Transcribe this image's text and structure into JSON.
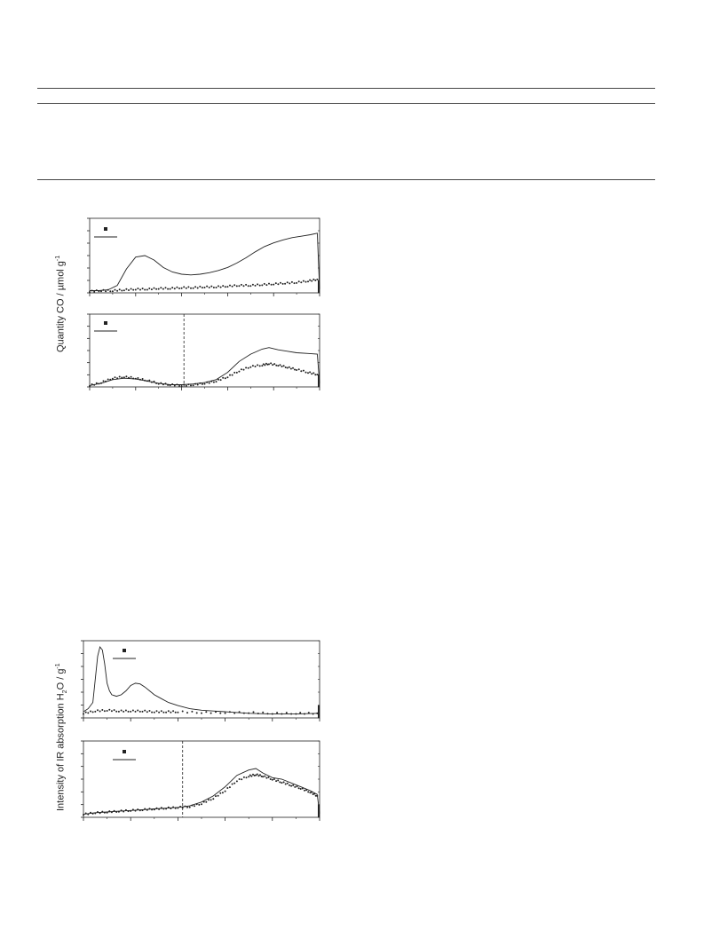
{
  "figure_top": {
    "ylabel": "Quantity CO / µmol g",
    "ylabel_sup": "-1"
  },
  "figure_bottom": {
    "ylabel": "Intensity of IR absorption H",
    "ylabel_sub": "2",
    "ylabel_rest": "O / g",
    "ylabel_sup": "-1"
  },
  "chart_data": [
    {
      "type": "line",
      "panel": "top-upper",
      "xlim": [
        0,
        100
      ],
      "ylim": [
        0,
        100
      ],
      "grid": false,
      "legend": "top-left",
      "series": [
        {
          "style": "line",
          "x": [
            0,
            4,
            8,
            12,
            16,
            20,
            24,
            28,
            32,
            36,
            40,
            44,
            48,
            52,
            56,
            60,
            64,
            68,
            72,
            76,
            80,
            84,
            88,
            92,
            96,
            99,
            100
          ],
          "values": [
            3,
            3,
            4,
            10,
            32,
            48,
            50,
            44,
            34,
            28,
            25,
            24,
            25,
            27,
            30,
            34,
            40,
            47,
            55,
            62,
            67,
            71,
            74,
            76,
            78,
            80,
            5
          ]
        },
        {
          "style": "dots",
          "x": [
            0,
            5,
            10,
            15,
            20,
            25,
            30,
            35,
            40,
            45,
            50,
            55,
            60,
            65,
            70,
            75,
            80,
            85,
            90,
            95,
            99
          ],
          "values": [
            2,
            3,
            3,
            4,
            5,
            5,
            6,
            6,
            7,
            7,
            8,
            8,
            9,
            10,
            10,
            11,
            12,
            13,
            14,
            16,
            18
          ]
        }
      ]
    },
    {
      "type": "line",
      "panel": "top-lower",
      "xlim": [
        0,
        100
      ],
      "ylim": [
        0,
        100
      ],
      "grid": false,
      "legend": "top-left",
      "marker_line_x": 41,
      "series": [
        {
          "style": "line",
          "x": [
            0,
            5,
            10,
            15,
            20,
            25,
            30,
            35,
            40,
            45,
            50,
            55,
            60,
            65,
            70,
            75,
            78,
            82,
            86,
            90,
            95,
            99,
            100
          ],
          "values": [
            2,
            5,
            10,
            12,
            11,
            8,
            5,
            3,
            3,
            4,
            6,
            10,
            20,
            35,
            45,
            52,
            54,
            51,
            49,
            47,
            46,
            45,
            5
          ]
        },
        {
          "style": "dots",
          "x": [
            0,
            5,
            10,
            15,
            20,
            25,
            30,
            35,
            40,
            45,
            50,
            55,
            60,
            65,
            70,
            75,
            78,
            82,
            86,
            90,
            95,
            99
          ],
          "values": [
            2,
            6,
            12,
            14,
            12,
            9,
            5,
            3,
            2,
            3,
            5,
            8,
            14,
            22,
            28,
            30,
            32,
            30,
            27,
            24,
            20,
            17
          ]
        }
      ]
    },
    {
      "type": "line",
      "panel": "bottom-upper",
      "xlim": [
        0,
        100
      ],
      "ylim": [
        0,
        100
      ],
      "grid": false,
      "legend": "top-left",
      "series": [
        {
          "style": "line",
          "x": [
            0,
            2,
            4,
            5,
            6,
            7,
            8,
            9,
            10,
            11,
            12,
            14,
            16,
            18,
            20,
            22,
            24,
            26,
            28,
            30,
            33,
            36,
            40,
            45,
            50,
            55,
            60,
            65,
            70,
            80,
            90,
            99,
            100
          ],
          "values": [
            8,
            12,
            20,
            50,
            80,
            92,
            88,
            70,
            45,
            35,
            30,
            28,
            30,
            35,
            42,
            45,
            44,
            40,
            35,
            30,
            25,
            20,
            16,
            12,
            10,
            9,
            8,
            7,
            6,
            5,
            5,
            6,
            3
          ]
        },
        {
          "style": "dots",
          "x": [
            0,
            5,
            10,
            15,
            20,
            25,
            30,
            35,
            40,
            50,
            60,
            70,
            80,
            90,
            99
          ],
          "values": [
            6,
            9,
            10,
            9,
            9,
            9,
            8,
            8,
            8,
            7,
            7,
            7,
            6,
            6,
            6
          ]
        }
      ]
    },
    {
      "type": "line",
      "panel": "bottom-lower",
      "xlim": [
        0,
        100
      ],
      "ylim": [
        0,
        100
      ],
      "grid": false,
      "legend": "top-left",
      "marker_line_x": 42,
      "series": [
        {
          "style": "line",
          "x": [
            0,
            5,
            10,
            15,
            20,
            25,
            30,
            35,
            40,
            45,
            50,
            55,
            60,
            65,
            70,
            73,
            76,
            80,
            84,
            88,
            92,
            96,
            99,
            100
          ],
          "values": [
            4,
            6,
            7,
            8,
            9,
            10,
            11,
            12,
            13,
            15,
            20,
            28,
            40,
            55,
            62,
            64,
            58,
            52,
            50,
            45,
            40,
            35,
            30,
            5
          ]
        },
        {
          "style": "dots",
          "x": [
            0,
            5,
            10,
            15,
            20,
            25,
            30,
            35,
            40,
            45,
            50,
            55,
            60,
            65,
            70,
            73,
            76,
            80,
            84,
            88,
            92,
            96,
            99
          ],
          "values": [
            4,
            6,
            7,
            8,
            9,
            10,
            11,
            12,
            13,
            14,
            18,
            25,
            35,
            48,
            54,
            56,
            54,
            50,
            46,
            42,
            38,
            33,
            28
          ]
        }
      ]
    }
  ]
}
